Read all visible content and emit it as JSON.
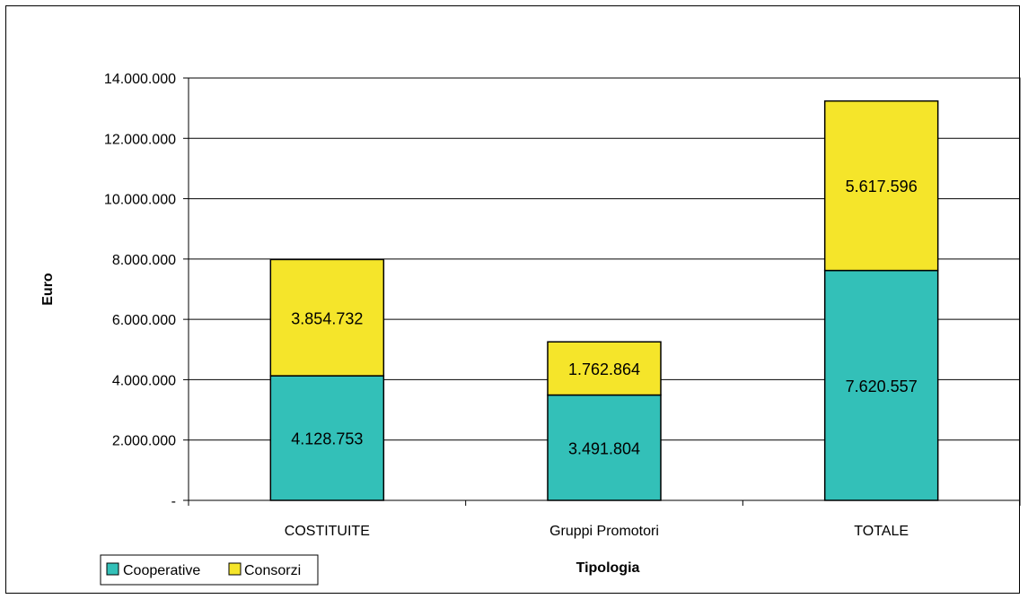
{
  "chart_data": {
    "type": "bar",
    "stacked": true,
    "categories": [
      "COSTITUITE",
      "Gruppi Promotori",
      "TOTALE"
    ],
    "series": [
      {
        "name": "Cooperative",
        "values": [
          4128753,
          3491804,
          7620557
        ],
        "labels": [
          "4.128.753",
          "3.491.804",
          "7.620.557"
        ],
        "color": "#33c0b8"
      },
      {
        "name": "Consorzi",
        "values": [
          3854732,
          1762864,
          5617596
        ],
        "labels": [
          "3.854.732",
          "1.762.864",
          "5.617.596"
        ],
        "color": "#f5e52a"
      }
    ],
    "ylim": [
      0,
      14000000
    ],
    "yticks": [
      0,
      2000000,
      4000000,
      6000000,
      8000000,
      10000000,
      12000000,
      14000000
    ],
    "ytick_labels": [
      "-",
      "2.000.000",
      "4.000.000",
      "6.000.000",
      "8.000.000",
      "10.000.000",
      "12.000.000",
      "14.000.000"
    ],
    "xlabel": "Tipologia",
    "ylabel": "Euro",
    "grid": true,
    "legend_position": "bottom-left"
  }
}
